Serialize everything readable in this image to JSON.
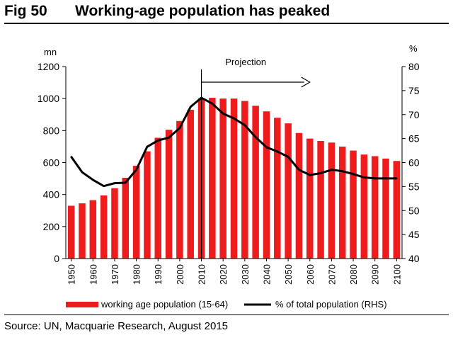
{
  "figure": {
    "number": "Fig 50",
    "title": "Working-age population has peaked"
  },
  "source": "Source: UN, Macquarie Research, August 2015",
  "colors": {
    "bar": "#ee1c1c",
    "line": "#000000",
    "axis": "#000000"
  },
  "chart_data": {
    "type": "bar",
    "title": "Working-age population has peaked",
    "left_axis": {
      "unit": "mn",
      "ticks": [
        "0",
        "200",
        "400",
        "600",
        "800",
        "1000",
        "1200"
      ],
      "ylim": [
        0,
        1200
      ]
    },
    "right_axis": {
      "unit": "%",
      "ticks": [
        "40",
        "45",
        "50",
        "55",
        "60",
        "65",
        "70",
        "75",
        "80"
      ],
      "ylim": [
        40,
        80
      ]
    },
    "x_tick_labels": [
      "1950",
      "1960",
      "1970",
      "1980",
      "1990",
      "2000",
      "2010",
      "2020",
      "2030",
      "2040",
      "2050",
      "2060",
      "2070",
      "2080",
      "2090",
      "2100"
    ],
    "categories": [
      1950,
      1955,
      1960,
      1965,
      1970,
      1975,
      1980,
      1985,
      1990,
      1995,
      2000,
      2005,
      2010,
      2015,
      2020,
      2025,
      2030,
      2035,
      2040,
      2045,
      2050,
      2055,
      2060,
      2065,
      2070,
      2075,
      2080,
      2085,
      2090,
      2095,
      2100
    ],
    "series": [
      {
        "name": "working age population (15-64)",
        "type": "bar",
        "axis": "left",
        "values": [
          330,
          345,
          365,
          395,
          440,
          505,
          580,
          670,
          755,
          805,
          860,
          930,
          1000,
          1005,
          1000,
          1000,
          985,
          955,
          920,
          880,
          845,
          785,
          750,
          735,
          725,
          700,
          675,
          650,
          640,
          625,
          610
        ]
      },
      {
        "name": "% of total population (RHS)",
        "type": "line",
        "axis": "right",
        "values": [
          61.2,
          58.0,
          56.4,
          55.1,
          55.7,
          55.8,
          58.5,
          63.3,
          64.6,
          65.2,
          67.2,
          71.6,
          73.5,
          72.3,
          70.2,
          69.2,
          67.8,
          65.3,
          63.2,
          62.3,
          61.2,
          58.5,
          57.4,
          57.8,
          58.5,
          58.2,
          57.6,
          56.9,
          56.7,
          56.7,
          56.7
        ]
      }
    ],
    "annotations": [
      {
        "text": "Projection",
        "from": 2010,
        "to": 2060
      }
    ],
    "legend": {
      "placement": "bottom"
    }
  }
}
